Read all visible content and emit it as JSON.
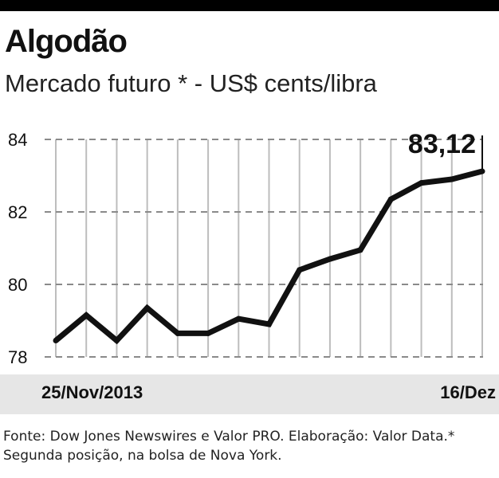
{
  "title": "Algodão",
  "subtitle": "Mercado futuro * - US$ cents/libra",
  "source": "Fonte: Dow Jones Newswires e Valor PRO. Elaboração: Valor Data.* Segunda posição, na bolsa de Nova York.",
  "colors": {
    "line": "#111111",
    "grid": "#bdbdbd",
    "xbar": "#e6e6e6"
  },
  "chart_data": {
    "type": "line",
    "xlabel_start": "25/Nov/2013",
    "xlabel_end": "16/Dez",
    "callout": "83,12",
    "ylim": [
      78,
      84
    ],
    "yticks": [
      "78",
      "80",
      "82",
      "84"
    ],
    "grid": true,
    "series": [
      {
        "values": [
          78.45,
          79.15,
          78.45,
          79.35,
          78.65,
          78.65,
          79.05,
          78.9,
          80.4,
          80.7,
          80.95,
          82.35,
          82.8,
          82.9,
          83.12
        ]
      }
    ]
  }
}
